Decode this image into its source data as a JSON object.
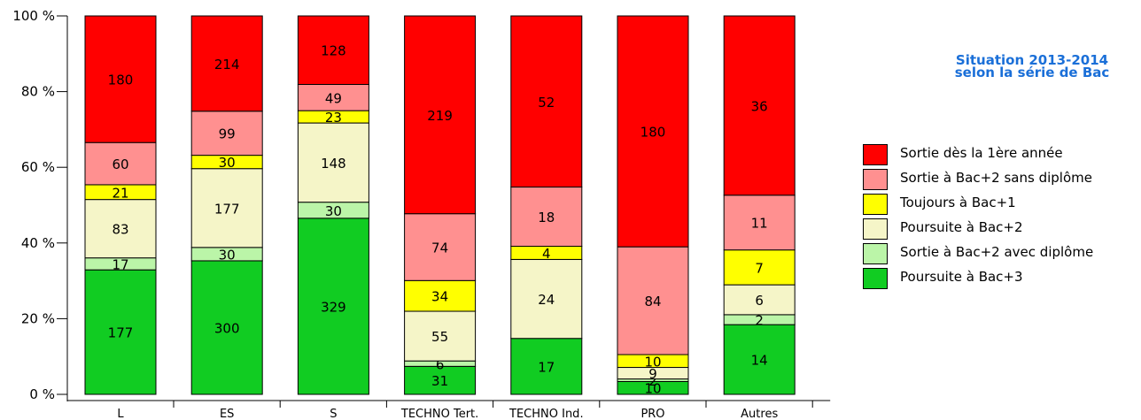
{
  "chart_data": {
    "type": "bar",
    "stacked": true,
    "normalized": true,
    "title_lines": [
      "Situation 2013-2014",
      "selon la série de Bac"
    ],
    "categories": [
      "L",
      "ES",
      "S",
      "TECHNO Tert.",
      "TECHNO Ind.",
      "PRO",
      "Autres"
    ],
    "yticks": [
      "0 %",
      "20 %",
      "40 %",
      "60 %",
      "80 %",
      "100 %"
    ],
    "ylim": [
      0,
      100
    ],
    "series": [
      {
        "name": "Poursuite à Bac+3",
        "color": "#11cc22",
        "values": [
          177,
          300,
          329,
          31,
          17,
          10,
          14
        ]
      },
      {
        "name": "Sortie à Bac+2 avec diplôme",
        "color": "#bbf5a8",
        "values": [
          17,
          30,
          30,
          6,
          0,
          2,
          2
        ]
      },
      {
        "name": "Poursuite à Bac+2",
        "color": "#f5f5c8",
        "values": [
          83,
          177,
          148,
          55,
          24,
          9,
          6
        ]
      },
      {
        "name": "Toujours à Bac+1",
        "color": "#ffff00",
        "values": [
          21,
          30,
          23,
          34,
          4,
          10,
          7
        ]
      },
      {
        "name": "Sortie à Bac+2 sans diplôme",
        "color": "#ff9090",
        "values": [
          60,
          99,
          49,
          74,
          18,
          84,
          11
        ]
      },
      {
        "name": "Sortie dès la 1ère année",
        "color": "#ff0000",
        "values": [
          180,
          214,
          128,
          219,
          52,
          180,
          36
        ]
      }
    ],
    "legend_order": [
      5,
      4,
      3,
      2,
      1,
      0
    ],
    "legend_position": "right",
    "grid": false
  }
}
